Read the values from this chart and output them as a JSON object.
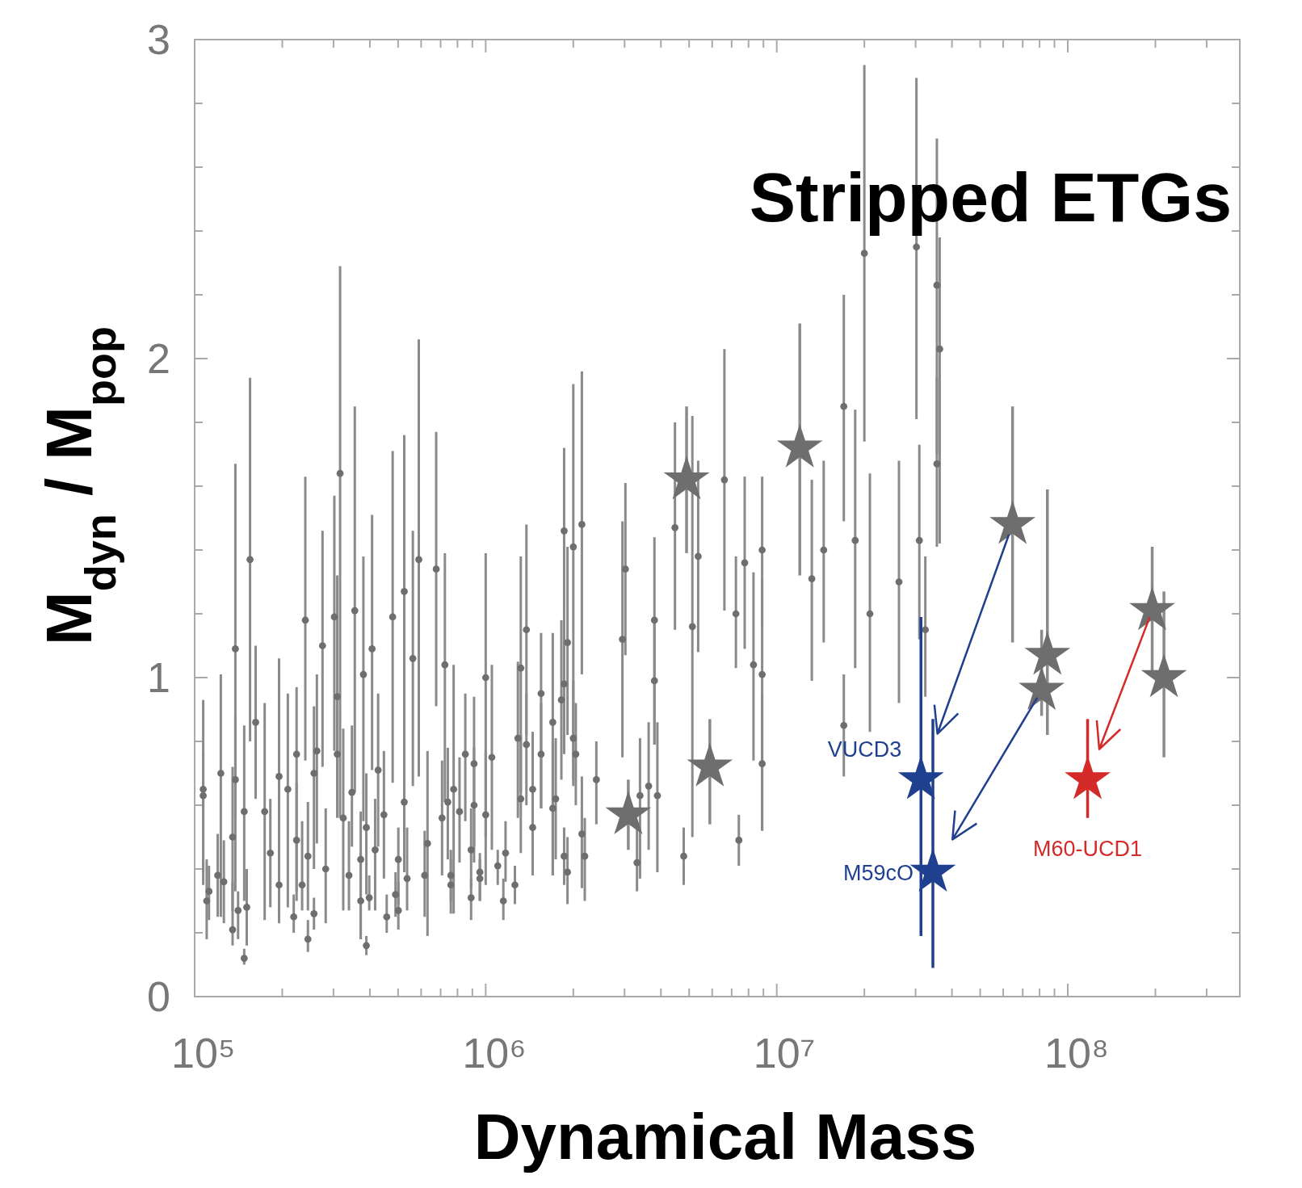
{
  "chart_data": {
    "type": "scatter",
    "xlabel": "Dynamical Mass",
    "ylabel": "M$_{dyn}$ / M$_{pop}$",
    "annotations": [
      "Stripped ETGs"
    ],
    "log": "x",
    "xlim": [
      100000,
      390000000
    ],
    "xticks": [
      {
        "value": 100000,
        "label": "10⁵"
      },
      {
        "value": 200000,
        "label": null
      },
      {
        "value": 300000,
        "label": null
      },
      {
        "value": 400000,
        "label": null
      },
      {
        "value": 500000,
        "label": null
      },
      {
        "value": 600000,
        "label": null
      },
      {
        "value": 700000,
        "label": null
      },
      {
        "value": 800000,
        "label": null
      },
      {
        "value": 900000,
        "label": null
      },
      {
        "value": 1000000,
        "label": "10⁶"
      },
      {
        "value": 2000000,
        "label": null
      },
      {
        "value": 3000000,
        "label": null
      },
      {
        "value": 4000000,
        "label": null
      },
      {
        "value": 5000000,
        "label": null
      },
      {
        "value": 6000000,
        "label": null
      },
      {
        "value": 7000000,
        "label": null
      },
      {
        "value": 8000000,
        "label": null
      },
      {
        "value": 9000000,
        "label": null
      },
      {
        "value": 10000000,
        "label": "10⁷"
      },
      {
        "value": 20000000,
        "label": null
      },
      {
        "value": 30000000,
        "label": null
      },
      {
        "value": 40000000,
        "label": null
      },
      {
        "value": 50000000,
        "label": null
      },
      {
        "value": 60000000,
        "label": null
      },
      {
        "value": 70000000,
        "label": null
      },
      {
        "value": 80000000,
        "label": null
      },
      {
        "value": 90000000,
        "label": null
      },
      {
        "value": 100000000,
        "label": "10⁸"
      },
      {
        "value": 200000000,
        "label": null
      },
      {
        "value": 300000000,
        "label": null
      }
    ],
    "ylim": [
      0,
      3
    ],
    "yticks": [
      0,
      {
        "value": 0.2,
        "label": null
      },
      {
        "value": 0.4,
        "label": null
      },
      {
        "value": 0.6,
        "label": null
      },
      {
        "value": 0.8,
        "label": null
      },
      1,
      {
        "value": 1.2,
        "label": null
      },
      {
        "value": 1.4,
        "label": null
      },
      {
        "value": 1.6,
        "label": null
      },
      {
        "value": 1.8,
        "label": null
      },
      2,
      {
        "value": 2.2,
        "label": null
      },
      {
        "value": 2.4,
        "label": null
      },
      {
        "value": 2.6,
        "label": null
      },
      {
        "value": 2.8,
        "label": null
      },
      3
    ],
    "series": [
      {
        "type": "scatter",
        "marker": "circle",
        "color": "#6e6e6e",
        "x": [
          107000,
          107000,
          110000,
          112000,
          123000,
          120000,
          126000,
          135000,
          138000,
          138000,
          135000,
          141000,
          148000,
          151000,
          148000,
          155000,
          162000,
          174000,
          182000,
          195000,
          195000,
          209000,
          219000,
          224000,
          224000,
          234000,
          240000,
          245000,
          245000,
          257000,
          263000,
          275000,
          257000,
          282000,
          302000,
          316000,
          309000,
          309000,
          324000,
          339000,
          355000,
          347000,
          372000,
          372000,
          380000,
          407000,
          389000,
          398000,
          417000,
          427000,
          389000,
          447000,
          457000,
          479000,
          490000,
          501000,
          525000,
          525000,
          537000,
          501000,
          562000,
          589000,
          617000,
          631000,
          676000,
          724000,
          708000,
          741000,
          759000,
          776000,
          759000,
          813000,
          851000,
          891000,
          891000,
          912000,
          912000,
          955000,
          955000,
          1000000,
          1050000,
          1000000,
          1100000,
          1170000,
          1150000,
          1260000,
          1290000,
          1380000,
          1320000,
          1380000,
          1320000,
          1450000,
          1450000,
          1550000,
          1550000,
          1700000,
          1700000,
          1740000,
          1860000,
          1820000,
          1910000,
          1860000,
          2000000,
          2000000,
          1860000,
          1910000,
          2040000,
          2140000,
          2140000,
          2190000,
          2400000,
          2950000,
          3020000,
          3310000,
          3390000,
          3630000,
          3800000,
          3800000,
          3890000,
          4470000,
          5370000,
          5130000,
          4790000,
          6610000,
          7240000,
          7760000,
          7410000,
          8320000,
          8910000,
          8910000,
          8910000,
          13200000,
          14500000,
          17000000,
          20000000,
          18600000,
          20900000,
          17000000,
          26300000,
          30200000,
          30900000,
          32400000,
          35500000,
          36300000,
          35500000
        ],
        "values": [
          0.65,
          0.63,
          0.3,
          0.33,
          0.7,
          0.38,
          0.36,
          0.21,
          1.09,
          0.68,
          0.5,
          0.27,
          0.58,
          0.28,
          0.12,
          1.37,
          0.86,
          0.58,
          0.45,
          0.69,
          0.35,
          0.65,
          0.25,
          0.76,
          0.49,
          0.35,
          1.18,
          0.18,
          0.44,
          0.7,
          0.77,
          1.1,
          0.26,
          0.4,
          1.19,
          1.64,
          0.94,
          0.76,
          0.56,
          0.38,
          1.21,
          0.64,
          0.43,
          0.3,
          1.01,
          1.09,
          0.53,
          0.31,
          0.46,
          0.71,
          0.16,
          0.57,
          0.25,
          1.19,
          0.32,
          0.43,
          1.27,
          0.61,
          0.37,
          0.27,
          1.06,
          1.37,
          0.38,
          0.48,
          1.34,
          1.04,
          0.56,
          0.61,
          0.35,
          0.65,
          0.38,
          0.58,
          0.76,
          0.46,
          0.31,
          0.73,
          0.6,
          0.39,
          0.37,
          1.0,
          0.75,
          0.57,
          0.41,
          0.45,
          0.3,
          0.35,
          0.81,
          1.15,
          1.03,
          0.79,
          0.62,
          0.65,
          0.53,
          0.95,
          0.76,
          0.86,
          0.59,
          0.62,
          1.46,
          0.93,
          1.11,
          0.98,
          1.41,
          0.81,
          0.44,
          0.39,
          0.76,
          1.48,
          0.51,
          0.44,
          0.68,
          1.12,
          1.34,
          0.42,
          0.63,
          0.66,
          1.18,
          0.99,
          0.63,
          1.47,
          1.38,
          1.16,
          0.44,
          1.62,
          1.2,
          1.36,
          0.49,
          1.04,
          1.4,
          1.01,
          0.73,
          1.31,
          1.4,
          1.85,
          2.33,
          1.43,
          1.2,
          0.85,
          1.3,
          2.35,
          1.43,
          1.15,
          2.23,
          2.03,
          1.67
        ],
        "errors": [
          [
            0.35,
            0.93
          ],
          [
            0.39,
            0.77
          ],
          [
            0.18,
            0.43
          ],
          [
            0.24,
            0.41
          ],
          [
            0.25,
            1.01
          ],
          [
            0.25,
            0.51
          ],
          [
            0.23,
            0.49
          ],
          [
            0.16,
            0.36
          ],
          [
            0.56,
            1.67
          ],
          [
            0.33,
            0.88
          ],
          [
            0.27,
            0.72
          ],
          [
            0.18,
            0.33
          ],
          [
            0.3,
            0.85
          ],
          [
            0.16,
            0.4
          ],
          [
            0.1,
            0.15
          ],
          [
            0.8,
            1.94
          ],
          [
            0.62,
            1.1
          ],
          [
            0.24,
            0.92
          ],
          [
            0.28,
            0.62
          ],
          [
            0.23,
            1.06
          ],
          [
            0.26,
            0.52
          ],
          [
            0.28,
            0.95
          ],
          [
            0.2,
            0.32
          ],
          [
            0.33,
            0.97
          ],
          [
            0.3,
            0.67
          ],
          [
            0.27,
            0.55
          ],
          [
            0.74,
            1.63
          ],
          [
            0.14,
            0.24
          ],
          [
            0.27,
            0.61
          ],
          [
            0.4,
            0.91
          ],
          [
            0.48,
            1.01
          ],
          [
            0.72,
            1.46
          ],
          [
            0.21,
            0.31
          ],
          [
            0.23,
            0.59
          ],
          [
            0.77,
            1.57
          ],
          [
            0.56,
            2.29
          ],
          [
            0.56,
            1.32
          ],
          [
            0.61,
            0.91
          ],
          [
            0.27,
            0.84
          ],
          [
            0.27,
            0.55
          ],
          [
            0.64,
            1.85
          ],
          [
            0.47,
            0.85
          ],
          [
            0.18,
            0.58
          ],
          [
            0.18,
            0.45
          ],
          [
            0.55,
            1.38
          ],
          [
            0.71,
            1.51
          ],
          [
            0.32,
            0.7
          ],
          [
            0.27,
            0.38
          ],
          [
            0.27,
            0.62
          ],
          [
            0.47,
            0.95
          ],
          [
            0.13,
            0.19
          ],
          [
            0.37,
            0.77
          ],
          [
            0.2,
            0.32
          ],
          [
            0.67,
            1.71
          ],
          [
            0.25,
            0.39
          ],
          [
            0.29,
            0.53
          ],
          [
            0.66,
            1.76
          ],
          [
            0.39,
            0.85
          ],
          [
            0.27,
            0.53
          ],
          [
            0.21,
            0.36
          ],
          [
            0.66,
            1.46
          ],
          [
            0.69,
            2.06
          ],
          [
            0.25,
            0.52
          ],
          [
            0.19,
            0.77
          ],
          [
            0.91,
            1.77
          ],
          [
            0.61,
            1.39
          ],
          [
            0.38,
            0.74
          ],
          [
            0.43,
            0.78
          ],
          [
            0.26,
            0.43
          ],
          [
            0.26,
            1.04
          ],
          [
            0.3,
            0.46
          ],
          [
            0.42,
            0.75
          ],
          [
            0.55,
            0.95
          ],
          [
            0.34,
            0.59
          ],
          [
            0.24,
            0.37
          ],
          [
            0.47,
            0.94
          ],
          [
            0.42,
            0.78
          ],
          [
            0.3,
            0.45
          ],
          [
            0.3,
            0.43
          ],
          [
            0.5,
            1.39
          ],
          [
            0.46,
            1.04
          ],
          [
            0.35,
            0.77
          ],
          [
            0.35,
            0.46
          ],
          [
            0.36,
            0.55
          ],
          [
            0.24,
            0.37
          ],
          [
            0.29,
            0.41
          ],
          [
            0.56,
            1.05
          ],
          [
            0.82,
            1.48
          ],
          [
            0.64,
            1.38
          ],
          [
            0.6,
            0.95
          ],
          [
            0.45,
            0.82
          ],
          [
            0.38,
            0.83
          ],
          [
            0.38,
            0.68
          ],
          [
            0.59,
            1.14
          ],
          [
            0.59,
            0.92
          ],
          [
            0.38,
            1.14
          ],
          [
            0.38,
            0.8
          ],
          [
            0.43,
            0.81
          ],
          [
            1.21,
            1.72
          ],
          [
            0.68,
            1.18
          ],
          [
            0.82,
            1.41
          ],
          [
            0.76,
            1.21
          ],
          [
            0.66,
            1.92
          ],
          [
            0.68,
            0.99
          ],
          [
            0.35,
            0.53
          ],
          [
            0.29,
            0.5
          ],
          [
            0.6,
            0.92
          ],
          [
            1.01,
            1.96
          ],
          [
            0.34,
            0.69
          ],
          [
            0.3,
            0.56
          ],
          [
            0.54,
            0.8
          ],
          [
            0.75,
            1.49
          ],
          [
            1.07,
            1.61
          ],
          [
            0.33,
            0.55
          ],
          [
            0.37,
            0.81
          ],
          [
            0.46,
            0.86
          ],
          [
            0.79,
            1.44
          ],
          [
            0.79,
            1.18
          ],
          [
            0.39,
            0.86
          ],
          [
            1.15,
            1.8
          ],
          [
            1.08,
            1.68
          ],
          [
            0.5,
            1.82
          ],
          [
            0.35,
            0.53
          ],
          [
            1.21,
            2.03
          ],
          [
            1.03,
            1.38
          ],
          [
            1.09,
            1.63
          ],
          [
            0.41,
            0.57
          ],
          [
            0.74,
            1.33
          ],
          [
            1.16,
            1.63
          ],
          [
            0.52,
            1.31
          ],
          [
            0.52,
            0.95
          ],
          [
            0.99,
            1.62
          ],
          [
            1.11,
            1.68
          ],
          [
            1.49,
            2.2
          ],
          [
            1.74,
            2.92
          ],
          [
            1.03,
            1.84
          ],
          [
            0.83,
            1.64
          ],
          [
            0.69,
            1.01
          ],
          [
            0.92,
            1.68
          ],
          [
            1.81,
            2.88
          ],
          [
            1.12,
            1.73
          ],
          [
            0.94,
            1.38
          ],
          [
            1.7,
            2.69
          ],
          [
            1.42,
            2.38
          ],
          [
            1.41,
            1.94
          ]
        ]
      },
      {
        "type": "scatter",
        "marker": "star",
        "color": "#6e6e6e",
        "x": [
          3090000,
          4900000,
          5890000,
          12000000,
          64600000,
          81300000,
          85100000,
          195000000,
          214000000
        ],
        "values": [
          0.57,
          1.62,
          0.72,
          1.72,
          1.48,
          0.96,
          1.07,
          1.21,
          1.0
        ],
        "errors": [
          [
            0.46,
            0.68
          ],
          [
            1.39,
            1.85
          ],
          [
            0.54,
            0.87
          ],
          [
            1.32,
            2.11
          ],
          [
            1.11,
            1.85
          ],
          [
            0.88,
            1.15
          ],
          [
            0.82,
            1.59
          ],
          [
            1.01,
            1.41
          ],
          [
            0.75,
            1.27
          ]
        ]
      },
      {
        "type": "scatter",
        "marker": "star",
        "name": "VUCD3",
        "color": "#1f3f8f",
        "x": [
          31300000
        ],
        "values": [
          0.68
        ],
        "errors": [
          [
            0.19,
            1.19
          ]
        ]
      },
      {
        "type": "scatter",
        "marker": "star",
        "name": "M59cO",
        "color": "#1f3f8f",
        "x": [
          34400000
        ],
        "values": [
          0.39
        ],
        "errors": [
          [
            0.09,
            0.87
          ]
        ]
      },
      {
        "type": "scatter",
        "marker": "star",
        "name": "M60-UCD1",
        "color": "#d42a2a",
        "x": [
          117000000
        ],
        "values": [
          0.68
        ],
        "errors": [
          [
            0.56,
            0.87
          ]
        ]
      }
    ]
  }
}
